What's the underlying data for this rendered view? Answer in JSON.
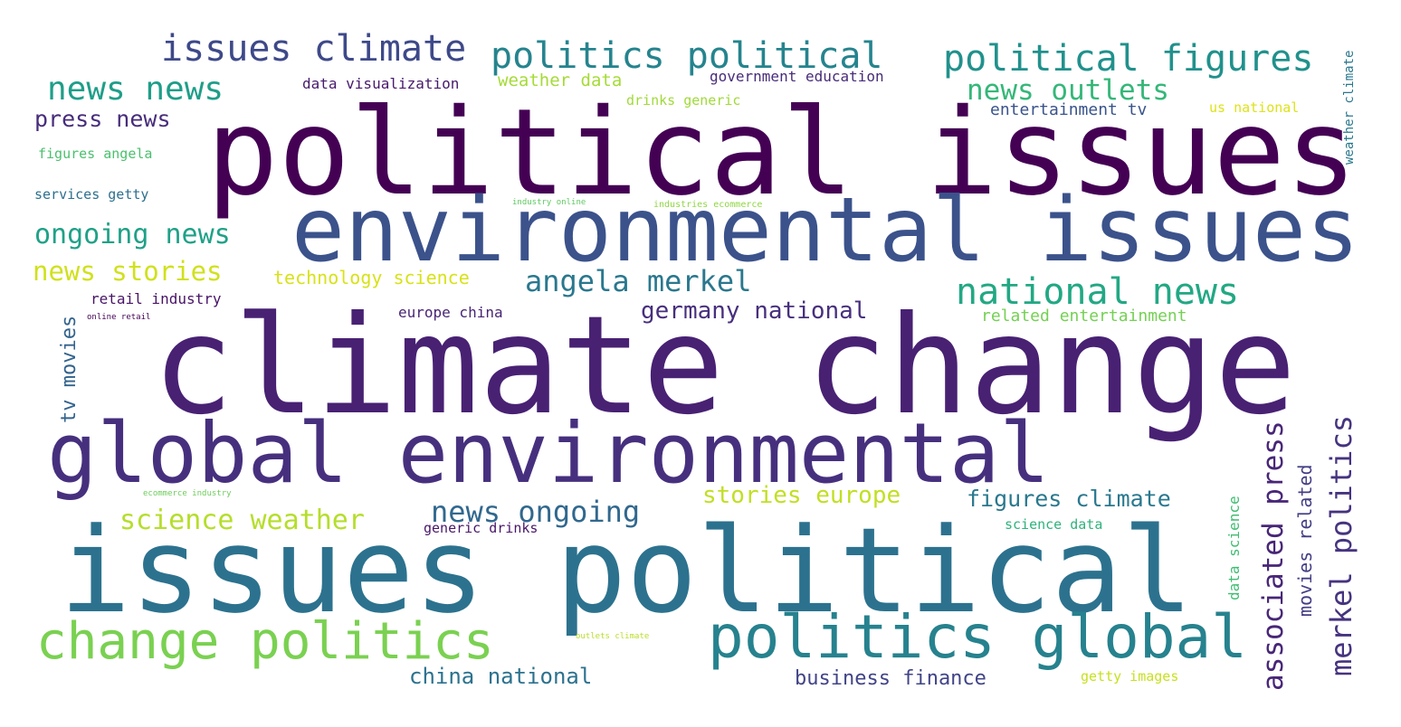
{
  "words": [
    {
      "text": "political issues",
      "color": "#440154"
    },
    {
      "text": "climate change",
      "color": "#482173"
    },
    {
      "text": "environmental issues",
      "color": "#3b528b"
    },
    {
      "text": "issues political",
      "color": "#2c728e"
    },
    {
      "text": "global environmental",
      "color": "#46307e"
    },
    {
      "text": "change politics",
      "color": "#7ad151"
    },
    {
      "text": "politics global",
      "color": "#26828e"
    },
    {
      "text": "issues climate",
      "color": "#3e4989"
    },
    {
      "text": "politics political",
      "color": "#25848e"
    },
    {
      "text": "political figures",
      "color": "#21918c"
    },
    {
      "text": "news news",
      "color": "#1f9e89"
    },
    {
      "text": "news outlets",
      "color": "#35b779"
    },
    {
      "text": "national news",
      "color": "#22a884"
    },
    {
      "text": "press news",
      "color": "#472d7b"
    },
    {
      "text": "ongoing news",
      "color": "#1fa187"
    },
    {
      "text": "news stories",
      "color": "#d0e11c"
    },
    {
      "text": "angela merkel",
      "color": "#2a788e"
    },
    {
      "text": "germany national",
      "color": "#472f7d"
    },
    {
      "text": "science weather",
      "color": "#b5de2b"
    },
    {
      "text": "news ongoing",
      "color": "#31688e"
    },
    {
      "text": "stories europe",
      "color": "#c2df23"
    },
    {
      "text": "figures climate",
      "color": "#2a788e"
    },
    {
      "text": "china national",
      "color": "#2c728e"
    },
    {
      "text": "business finance",
      "color": "#414487"
    },
    {
      "text": "data visualization",
      "color": "#481a6c"
    },
    {
      "text": "weather data",
      "color": "#a5db36"
    },
    {
      "text": "government education",
      "color": "#472c7a"
    },
    {
      "text": "drinks generic",
      "color": "#a0da39"
    },
    {
      "text": "entertainment tv",
      "color": "#3a548c"
    },
    {
      "text": "us national",
      "color": "#dde318"
    },
    {
      "text": "figures angela",
      "color": "#4ac16d"
    },
    {
      "text": "services getty",
      "color": "#2d708e"
    },
    {
      "text": "industry online",
      "color": "#5ec962"
    },
    {
      "text": "industries ecommerce",
      "color": "#8fd744"
    },
    {
      "text": "technology science",
      "color": "#d8e219"
    },
    {
      "text": "retail industry",
      "color": "#481467"
    },
    {
      "text": "online retail",
      "color": "#440154"
    },
    {
      "text": "europe china",
      "color": "#482475"
    },
    {
      "text": "related entertainment",
      "color": "#75d054"
    },
    {
      "text": "ecommerce industry",
      "color": "#6ccd5a"
    },
    {
      "text": "generic drinks",
      "color": "#481769"
    },
    {
      "text": "science data",
      "color": "#2eb37c"
    },
    {
      "text": "outlets climate",
      "color": "#b8de29"
    },
    {
      "text": "getty images",
      "color": "#c8e020"
    },
    {
      "text": "tv movies",
      "color": "#33638d"
    },
    {
      "text": "associated press",
      "color": "#482677"
    },
    {
      "text": "data science",
      "color": "#40bd72"
    },
    {
      "text": "movies related",
      "color": "#433e85"
    },
    {
      "text": "merkel politics",
      "color": "#46337f"
    },
    {
      "text": "weather climate",
      "color": "#2a788e"
    }
  ]
}
